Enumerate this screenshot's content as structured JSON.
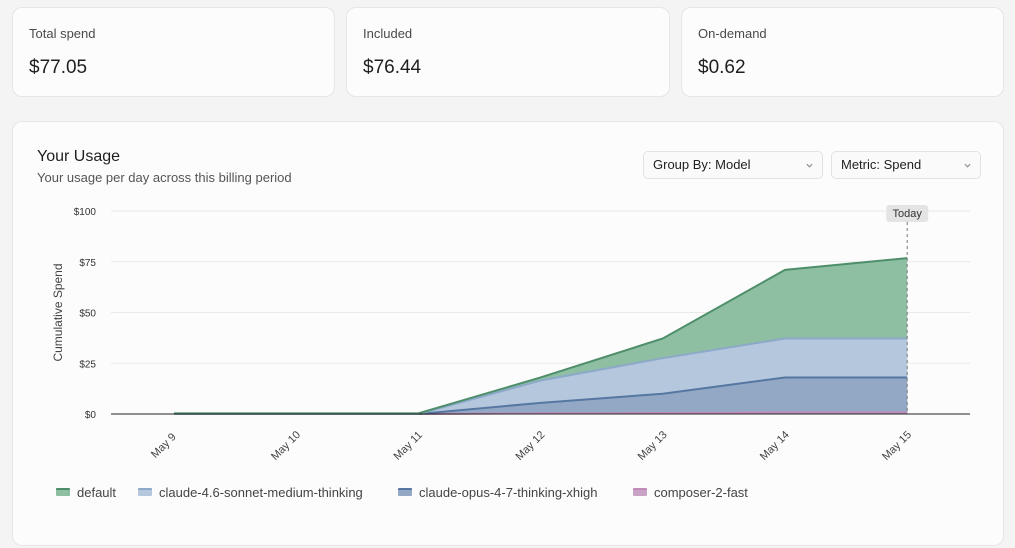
{
  "stats": [
    {
      "label": "Total spend",
      "value": "$77.05"
    },
    {
      "label": "Included",
      "value": "$76.44"
    },
    {
      "label": "On-demand",
      "value": "$0.62"
    }
  ],
  "usage": {
    "title": "Your Usage",
    "subtitle": "Your usage per day across this billing period",
    "group_by": "Group By: Model",
    "metric": "Metric: Spend"
  },
  "chart_data": {
    "type": "area",
    "stacked": true,
    "ylabel": "Cumulative Spend",
    "ylim": [
      0,
      100
    ],
    "yticks": [
      "$0",
      "$25",
      "$50",
      "$75",
      "$100"
    ],
    "ytick_values": [
      0,
      25,
      50,
      75,
      100
    ],
    "categories": [
      "May 9",
      "May 10",
      "May 11",
      "May 12",
      "May 13",
      "May 14",
      "May 15"
    ],
    "today_label": "Today",
    "grid": true,
    "legend_position": "bottom-left",
    "series": [
      {
        "name": "composer-2-fast",
        "color": "#c9a3c6",
        "stroke": "#c08ab9",
        "values": [
          0,
          0,
          0,
          0.3,
          0.5,
          0.8,
          0.8
        ]
      },
      {
        "name": "claude-opus-4-7-thinking-xhigh",
        "color": "#92a8c4",
        "stroke": "#5677a2",
        "values": [
          0,
          0,
          0,
          5.2,
          9.5,
          17.2,
          17.2
        ]
      },
      {
        "name": "claude-4.6-sonnet-medium-thinking",
        "color": "#b5c7dc",
        "stroke": "#8da9ca",
        "values": [
          0,
          0,
          0,
          11.0,
          17.5,
          19.2,
          19.2
        ]
      },
      {
        "name": "default",
        "color": "#8ebfa2",
        "stroke": "#4e8e6a",
        "values": [
          0.3,
          0.3,
          0.3,
          1.5,
          9.7,
          33.8,
          39.6
        ]
      }
    ]
  },
  "legend": [
    {
      "name": "default",
      "color": "#8ebfa2",
      "stroke": "#4e8e6a"
    },
    {
      "name": "claude-4.6-sonnet-medium-thinking",
      "color": "#b5c7dc",
      "stroke": "#8da9ca"
    },
    {
      "name": "claude-opus-4-7-thinking-xhigh",
      "color": "#92a8c4",
      "stroke": "#5677a2"
    },
    {
      "name": "composer-2-fast",
      "color": "#c9a3c6",
      "stroke": "#c08ab9"
    }
  ]
}
